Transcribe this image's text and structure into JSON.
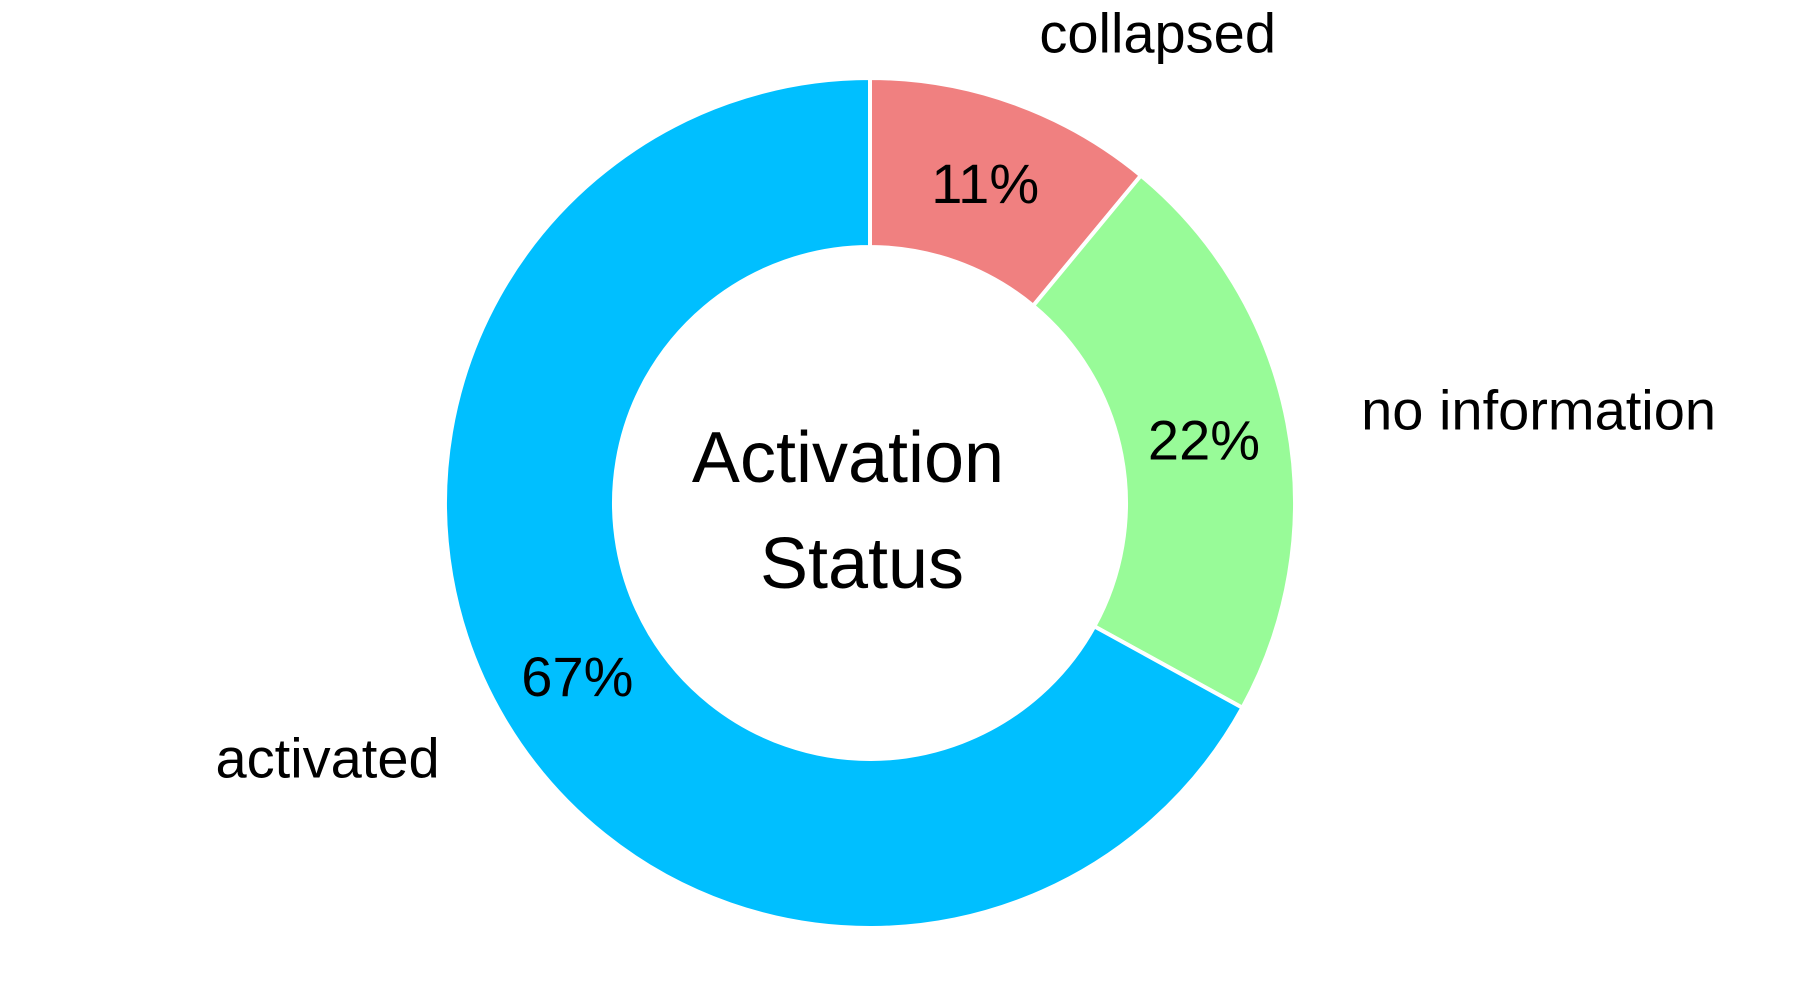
{
  "chart_data": {
    "type": "pie",
    "variant": "donut",
    "center_title_lines": [
      "Activation",
      "Status"
    ],
    "start": "top",
    "direction": "clockwise",
    "slices": [
      {
        "label": "collapsed",
        "value": 11,
        "pct_label": "11%",
        "color": "#F08080"
      },
      {
        "label": "no information",
        "value": 22,
        "pct_label": "22%",
        "color": "#98FB98"
      },
      {
        "label": "activated",
        "value": 67,
        "pct_label": "67%",
        "color": "#00BFFF"
      }
    ],
    "separator_color": "#FFFFFF"
  }
}
